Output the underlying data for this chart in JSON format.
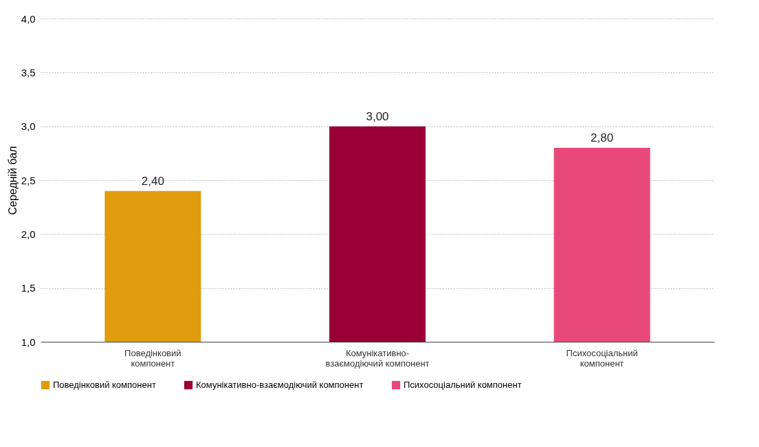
{
  "chart_data": {
    "type": "bar",
    "ylabel": "Середній бал",
    "categories": [
      "Поведінковий компонент",
      "Комунікативно-взаємодіючий компонент",
      "Психосоціальний компонент"
    ],
    "series": [
      {
        "name": "Поведінковий компонент",
        "color": "#e09c0c",
        "values": [
          2.4,
          null,
          null
        ],
        "value_labels": [
          "2,40",
          null,
          null
        ]
      },
      {
        "name": "Комунікативно-взаємодіючий компонент",
        "color": "#9a0035",
        "values": [
          null,
          3.0,
          null
        ],
        "value_labels": [
          null,
          "3,00",
          null
        ]
      },
      {
        "name": "Психосоціальний компонент",
        "color": "#e8497a",
        "values": [
          null,
          null,
          2.8
        ],
        "value_labels": [
          null,
          null,
          "2,80"
        ]
      }
    ],
    "ylim": [
      1.0,
      4.0
    ],
    "yticks": [
      {
        "value": 1.0,
        "label": "1,0"
      },
      {
        "value": 1.5,
        "label": "1,5"
      },
      {
        "value": 2.0,
        "label": "2,0"
      },
      {
        "value": 2.5,
        "label": "2,5"
      },
      {
        "value": 3.0,
        "label": "3,0"
      },
      {
        "value": 3.5,
        "label": "3,5"
      },
      {
        "value": 4.0,
        "label": "4,0"
      }
    ],
    "grid": "y",
    "legend": "bottom"
  }
}
